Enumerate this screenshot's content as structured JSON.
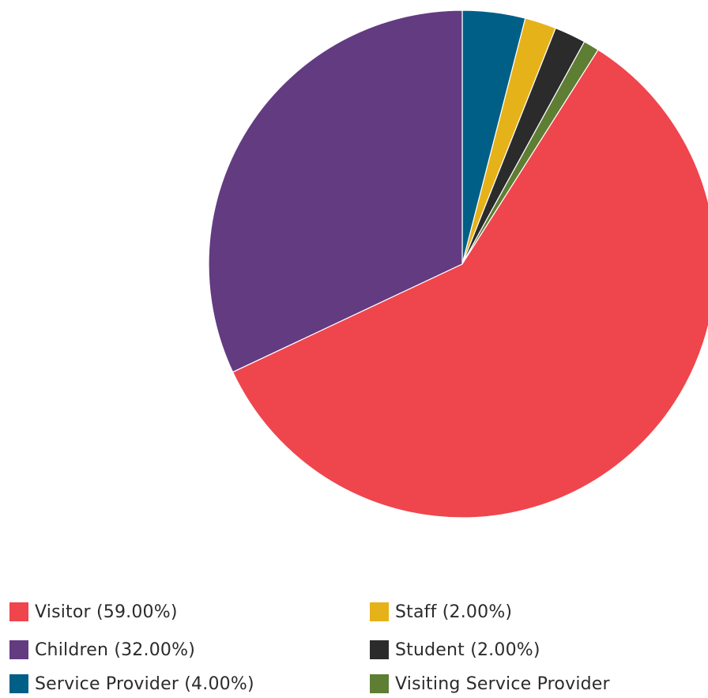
{
  "chart_data": {
    "type": "pie",
    "title": "",
    "start_angle_deg": 0,
    "direction": "clockwise",
    "slices": [
      {
        "label": "Service Provider",
        "value": 4.0,
        "color": "#005f87"
      },
      {
        "label": "Staff",
        "value": 2.0,
        "color": "#e6b219"
      },
      {
        "label": "Student",
        "value": 2.0,
        "color": "#2b2b2b"
      },
      {
        "label": "Visiting Service Provider",
        "value": 1.0,
        "color": "#5e7e34"
      },
      {
        "label": "Visitor",
        "value": 59.0,
        "color": "#ef454c"
      },
      {
        "label": "Children",
        "value": 32.0,
        "color": "#633b81"
      }
    ],
    "legend": {
      "placement": "bottom",
      "items": [
        {
          "text": "Visitor (59.00%)",
          "color": "#ef454c"
        },
        {
          "text": "Children (32.00%)",
          "color": "#633b81"
        },
        {
          "text": "Service Provider (4.00%)",
          "color": "#005f87"
        },
        {
          "text": "Staff (2.00%)",
          "color": "#e6b219"
        },
        {
          "text": "Student (2.00%)",
          "color": "#2b2b2b"
        },
        {
          "text": "Visiting Service Provider",
          "color": "#5e7e34"
        }
      ]
    }
  }
}
